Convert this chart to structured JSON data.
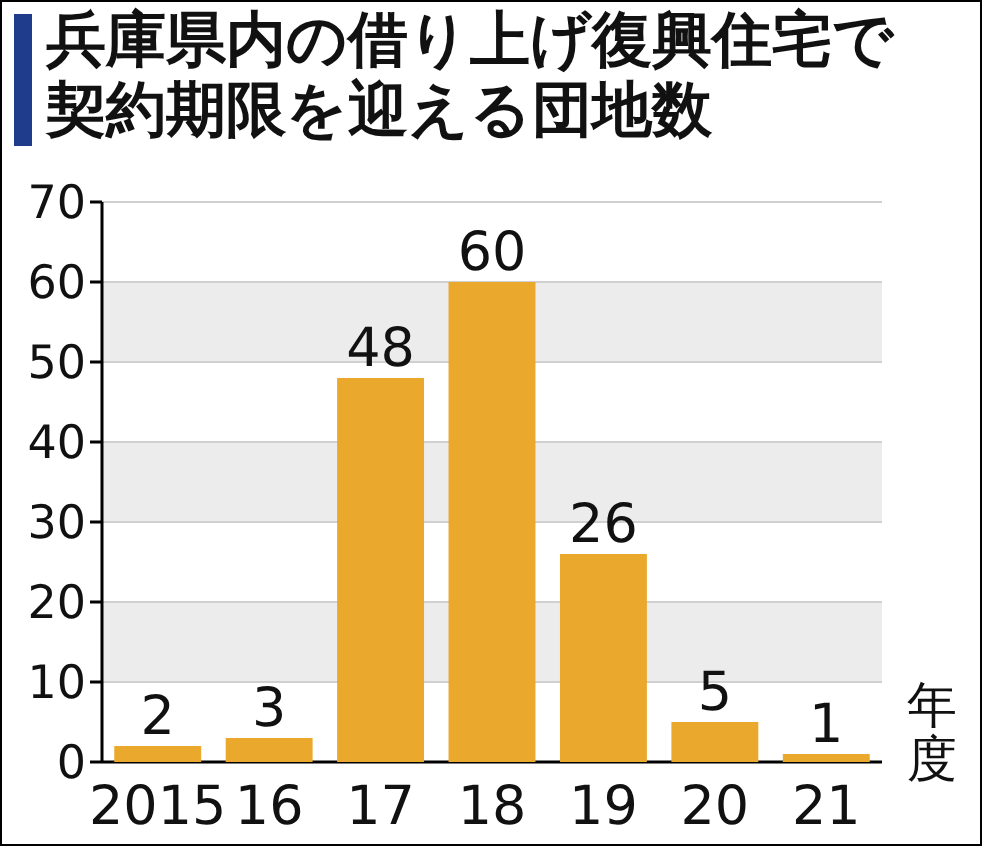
{
  "chart_data": {
    "type": "bar",
    "title": "兵庫県内の借り上げ復興住宅で契約期限を迎える団地数",
    "xlabel": "年度",
    "categories": [
      "2015",
      "16",
      "17",
      "18",
      "19",
      "20",
      "21"
    ],
    "values": [
      2,
      3,
      48,
      60,
      26,
      5,
      1
    ],
    "color": "#eaa92c",
    "ylim": [
      0,
      70
    ],
    "yticks": [
      0,
      10,
      20,
      30,
      40,
      50,
      60,
      70
    ],
    "grid": "y",
    "data_labels": true
  }
}
